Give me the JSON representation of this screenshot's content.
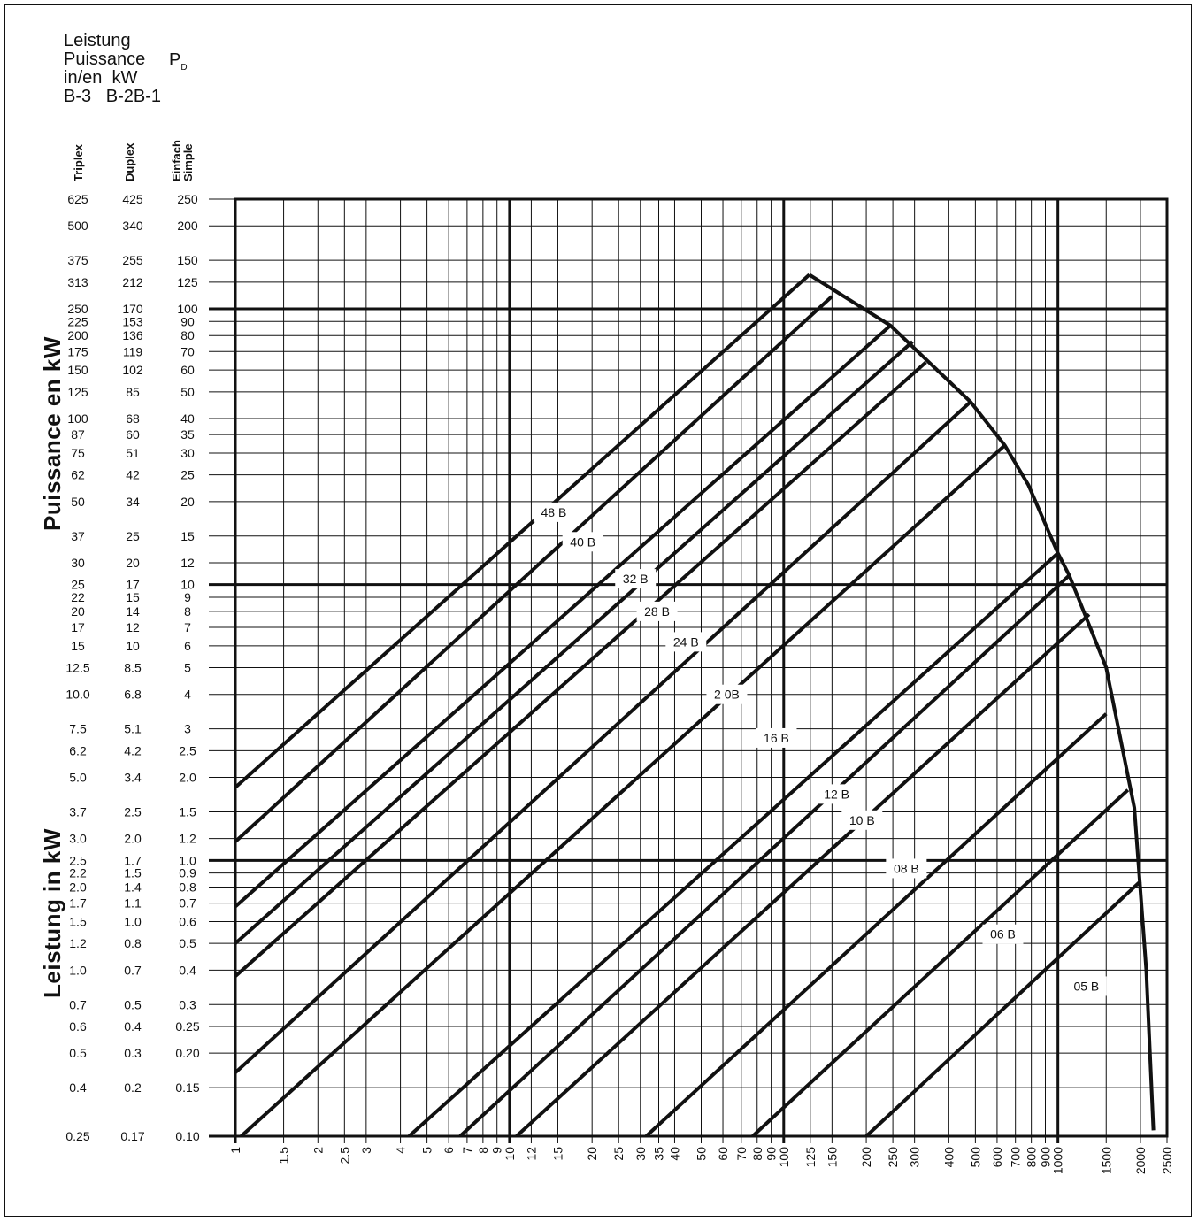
{
  "header": {
    "line1": "Leistung",
    "line2": "Puissance",
    "line3": "in/en  kW",
    "line4": "B-3   B-2B-1",
    "pd_main": "P",
    "pd_sub": "D"
  },
  "side_labels": {
    "upper": "Puissance en kW",
    "lower": "Leistung in kW"
  },
  "column_headers": {
    "triplex": "Triplex",
    "duplex": "Duplex",
    "simple_line1": "Einfach",
    "simple_line2": "Simple"
  },
  "chart_data": {
    "type": "line",
    "x_scale": "log",
    "y_scale": "log",
    "xlim": [
      1,
      2500
    ],
    "ylim": [
      0.1,
      250
    ],
    "x_ticks": [
      1,
      1.5,
      2,
      2.5,
      3,
      4,
      5,
      6,
      7,
      8,
      9,
      10,
      12,
      15,
      20,
      25,
      30,
      35,
      40,
      50,
      60,
      70,
      80,
      90,
      100,
      125,
      150,
      200,
      250,
      300,
      400,
      500,
      600,
      700,
      800,
      900,
      1000,
      1500,
      2000,
      2500
    ],
    "x_tick_labels": [
      "1",
      "1.5",
      "2",
      "2.5",
      "3",
      "4",
      "5",
      "6",
      "7",
      "8",
      "9",
      "10",
      "12",
      "15",
      "20",
      "25",
      "30",
      "35",
      "40",
      "50",
      "60",
      "70",
      "80",
      "90",
      "100",
      "125",
      "150",
      "200",
      "250",
      "300",
      "400",
      "500",
      "600",
      "700",
      "800",
      "900",
      "1000",
      "1500",
      "2000",
      "2500"
    ],
    "y_rows": [
      {
        "simple": "250",
        "duplex": "425",
        "triplex": "625",
        "v": 250
      },
      {
        "simple": "200",
        "duplex": "340",
        "triplex": "500",
        "v": 200
      },
      {
        "simple": "150",
        "duplex": "255",
        "triplex": "375",
        "v": 150
      },
      {
        "simple": "125",
        "duplex": "212",
        "triplex": "313",
        "v": 125
      },
      {
        "simple": "100",
        "duplex": "170",
        "triplex": "250",
        "v": 100
      },
      {
        "simple": "90",
        "duplex": "153",
        "triplex": "225",
        "v": 90
      },
      {
        "simple": "80",
        "duplex": "136",
        "triplex": "200",
        "v": 80
      },
      {
        "simple": "70",
        "duplex": "119",
        "triplex": "175",
        "v": 70
      },
      {
        "simple": "60",
        "duplex": "102",
        "triplex": "150",
        "v": 60
      },
      {
        "simple": "50",
        "duplex": "85",
        "triplex": "125",
        "v": 50
      },
      {
        "simple": "40",
        "duplex": "68",
        "triplex": "100",
        "v": 40
      },
      {
        "simple": "35",
        "duplex": "60",
        "triplex": "87",
        "v": 35
      },
      {
        "simple": "30",
        "duplex": "51",
        "triplex": "75",
        "v": 30
      },
      {
        "simple": "25",
        "duplex": "42",
        "triplex": "62",
        "v": 25
      },
      {
        "simple": "20",
        "duplex": "34",
        "triplex": "50",
        "v": 20
      },
      {
        "simple": "15",
        "duplex": "25",
        "triplex": "37",
        "v": 15
      },
      {
        "simple": "12",
        "duplex": "20",
        "triplex": "30",
        "v": 12
      },
      {
        "simple": "10",
        "duplex": "17",
        "triplex": "25",
        "v": 10
      },
      {
        "simple": "9",
        "duplex": "15",
        "triplex": "22",
        "v": 9
      },
      {
        "simple": "8",
        "duplex": "14",
        "triplex": "20",
        "v": 8
      },
      {
        "simple": "7",
        "duplex": "12",
        "triplex": "17",
        "v": 7
      },
      {
        "simple": "6",
        "duplex": "10",
        "triplex": "15",
        "v": 6
      },
      {
        "simple": "5",
        "duplex": "8.5",
        "triplex": "12.5",
        "v": 5
      },
      {
        "simple": "4",
        "duplex": "6.8",
        "triplex": "10.0",
        "v": 4
      },
      {
        "simple": "3",
        "duplex": "5.1",
        "triplex": "7.5",
        "v": 3
      },
      {
        "simple": "2.5",
        "duplex": "4.2",
        "triplex": "6.2",
        "v": 2.5
      },
      {
        "simple": "2.0",
        "duplex": "3.4",
        "triplex": "5.0",
        "v": 2.0
      },
      {
        "simple": "1.5",
        "duplex": "2.5",
        "triplex": "3.7",
        "v": 1.5
      },
      {
        "simple": "1.2",
        "duplex": "2.0",
        "triplex": "3.0",
        "v": 1.2
      },
      {
        "simple": "1.0",
        "duplex": "1.7",
        "triplex": "2.5",
        "v": 1.0
      },
      {
        "simple": "0.9",
        "duplex": "1.5",
        "triplex": "2.2",
        "v": 0.9
      },
      {
        "simple": "0.8",
        "duplex": "1.4",
        "triplex": "2.0",
        "v": 0.8
      },
      {
        "simple": "0.7",
        "duplex": "1.1",
        "triplex": "1.7",
        "v": 0.7
      },
      {
        "simple": "0.6",
        "duplex": "1.0",
        "triplex": "1.5",
        "v": 0.6
      },
      {
        "simple": "0.5",
        "duplex": "0.8",
        "triplex": "1.2",
        "v": 0.5
      },
      {
        "simple": "0.4",
        "duplex": "0.7",
        "triplex": "1.0",
        "v": 0.4
      },
      {
        "simple": "0.3",
        "duplex": "0.5",
        "triplex": "0.7",
        "v": 0.3
      },
      {
        "simple": "0.25",
        "duplex": "0.4",
        "triplex": "0.6",
        "v": 0.25
      },
      {
        "simple": "0.20",
        "duplex": "0.3",
        "triplex": "0.5",
        "v": 0.2
      },
      {
        "simple": "0.15",
        "duplex": "0.2",
        "triplex": "0.4",
        "v": 0.15
      },
      {
        "simple": "0.10",
        "duplex": "0.17",
        "triplex": "0.25",
        "v": 0.1
      }
    ],
    "major_y": [
      0.1,
      1,
      10,
      100
    ],
    "major_x": [
      1,
      10,
      100,
      1000
    ],
    "series": [
      {
        "name": "48 B",
        "points": [
          [
            1,
            1.84
          ],
          [
            124,
            133
          ]
        ],
        "label_at": [
          14.5,
          18.3
        ]
      },
      {
        "name": "40 B",
        "points": [
          [
            1,
            1.17
          ],
          [
            150,
            111
          ]
        ],
        "label_at": [
          18.5,
          14.3
        ]
      },
      {
        "name": "32 B",
        "points": [
          [
            1,
            0.68
          ],
          [
            245,
            87
          ]
        ],
        "label_at": [
          28.8,
          10.5
        ]
      },
      {
        "name": "28 B",
        "points": [
          [
            1,
            0.5
          ],
          [
            295,
            76
          ]
        ],
        "label_at": [
          34.5,
          8.0
        ]
      },
      {
        "name": "24 B",
        "points": [
          [
            1,
            0.38
          ],
          [
            330,
            64
          ]
        ],
        "label_at": [
          44,
          6.2
        ]
      },
      {
        "name": "2 0B",
        "points": [
          [
            1,
            0.17
          ],
          [
            480,
            46
          ]
        ],
        "label_at": [
          62,
          4.0
        ]
      },
      {
        "name": "16 B",
        "points": [
          [
            1.05,
            0.1
          ],
          [
            640,
            32
          ]
        ],
        "label_at": [
          94,
          2.78
        ]
      },
      {
        "name": "12 B",
        "points": [
          [
            4.3,
            0.1
          ],
          [
            1000,
            13
          ]
        ],
        "label_at": [
          156,
          1.74
        ]
      },
      {
        "name": "10 B",
        "points": [
          [
            6.6,
            0.1
          ],
          [
            1100,
            10.8
          ]
        ],
        "label_at": [
          193,
          1.4
        ]
      },
      {
        "name": "",
        "points": [
          [
            10.6,
            0.1
          ],
          [
            1300,
            7.8
          ]
        ]
      },
      {
        "name": "08 B",
        "points": [
          [
            31.5,
            0.1
          ],
          [
            1500,
            3.4
          ]
        ],
        "label_at": [
          280,
          0.935
        ]
      },
      {
        "name": "06 B",
        "points": [
          [
            77,
            0.1
          ],
          [
            1800,
            1.8
          ]
        ],
        "label_at": [
          630,
          0.54
        ]
      },
      {
        "name": "05 B",
        "points": [
          [
            200,
            0.1
          ],
          [
            2000,
            0.84
          ]
        ],
        "label_at": [
          1270,
          0.35
        ]
      }
    ],
    "envelope": [
      [
        124,
        133
      ],
      [
        245,
        87
      ],
      [
        480,
        46
      ],
      [
        640,
        32
      ],
      [
        780,
        23
      ],
      [
        1000,
        13
      ],
      [
        1100,
        10.8
      ],
      [
        1500,
        5
      ],
      [
        1900,
        1.55
      ],
      [
        2100,
        0.4
      ],
      [
        2230,
        0.105
      ]
    ]
  }
}
